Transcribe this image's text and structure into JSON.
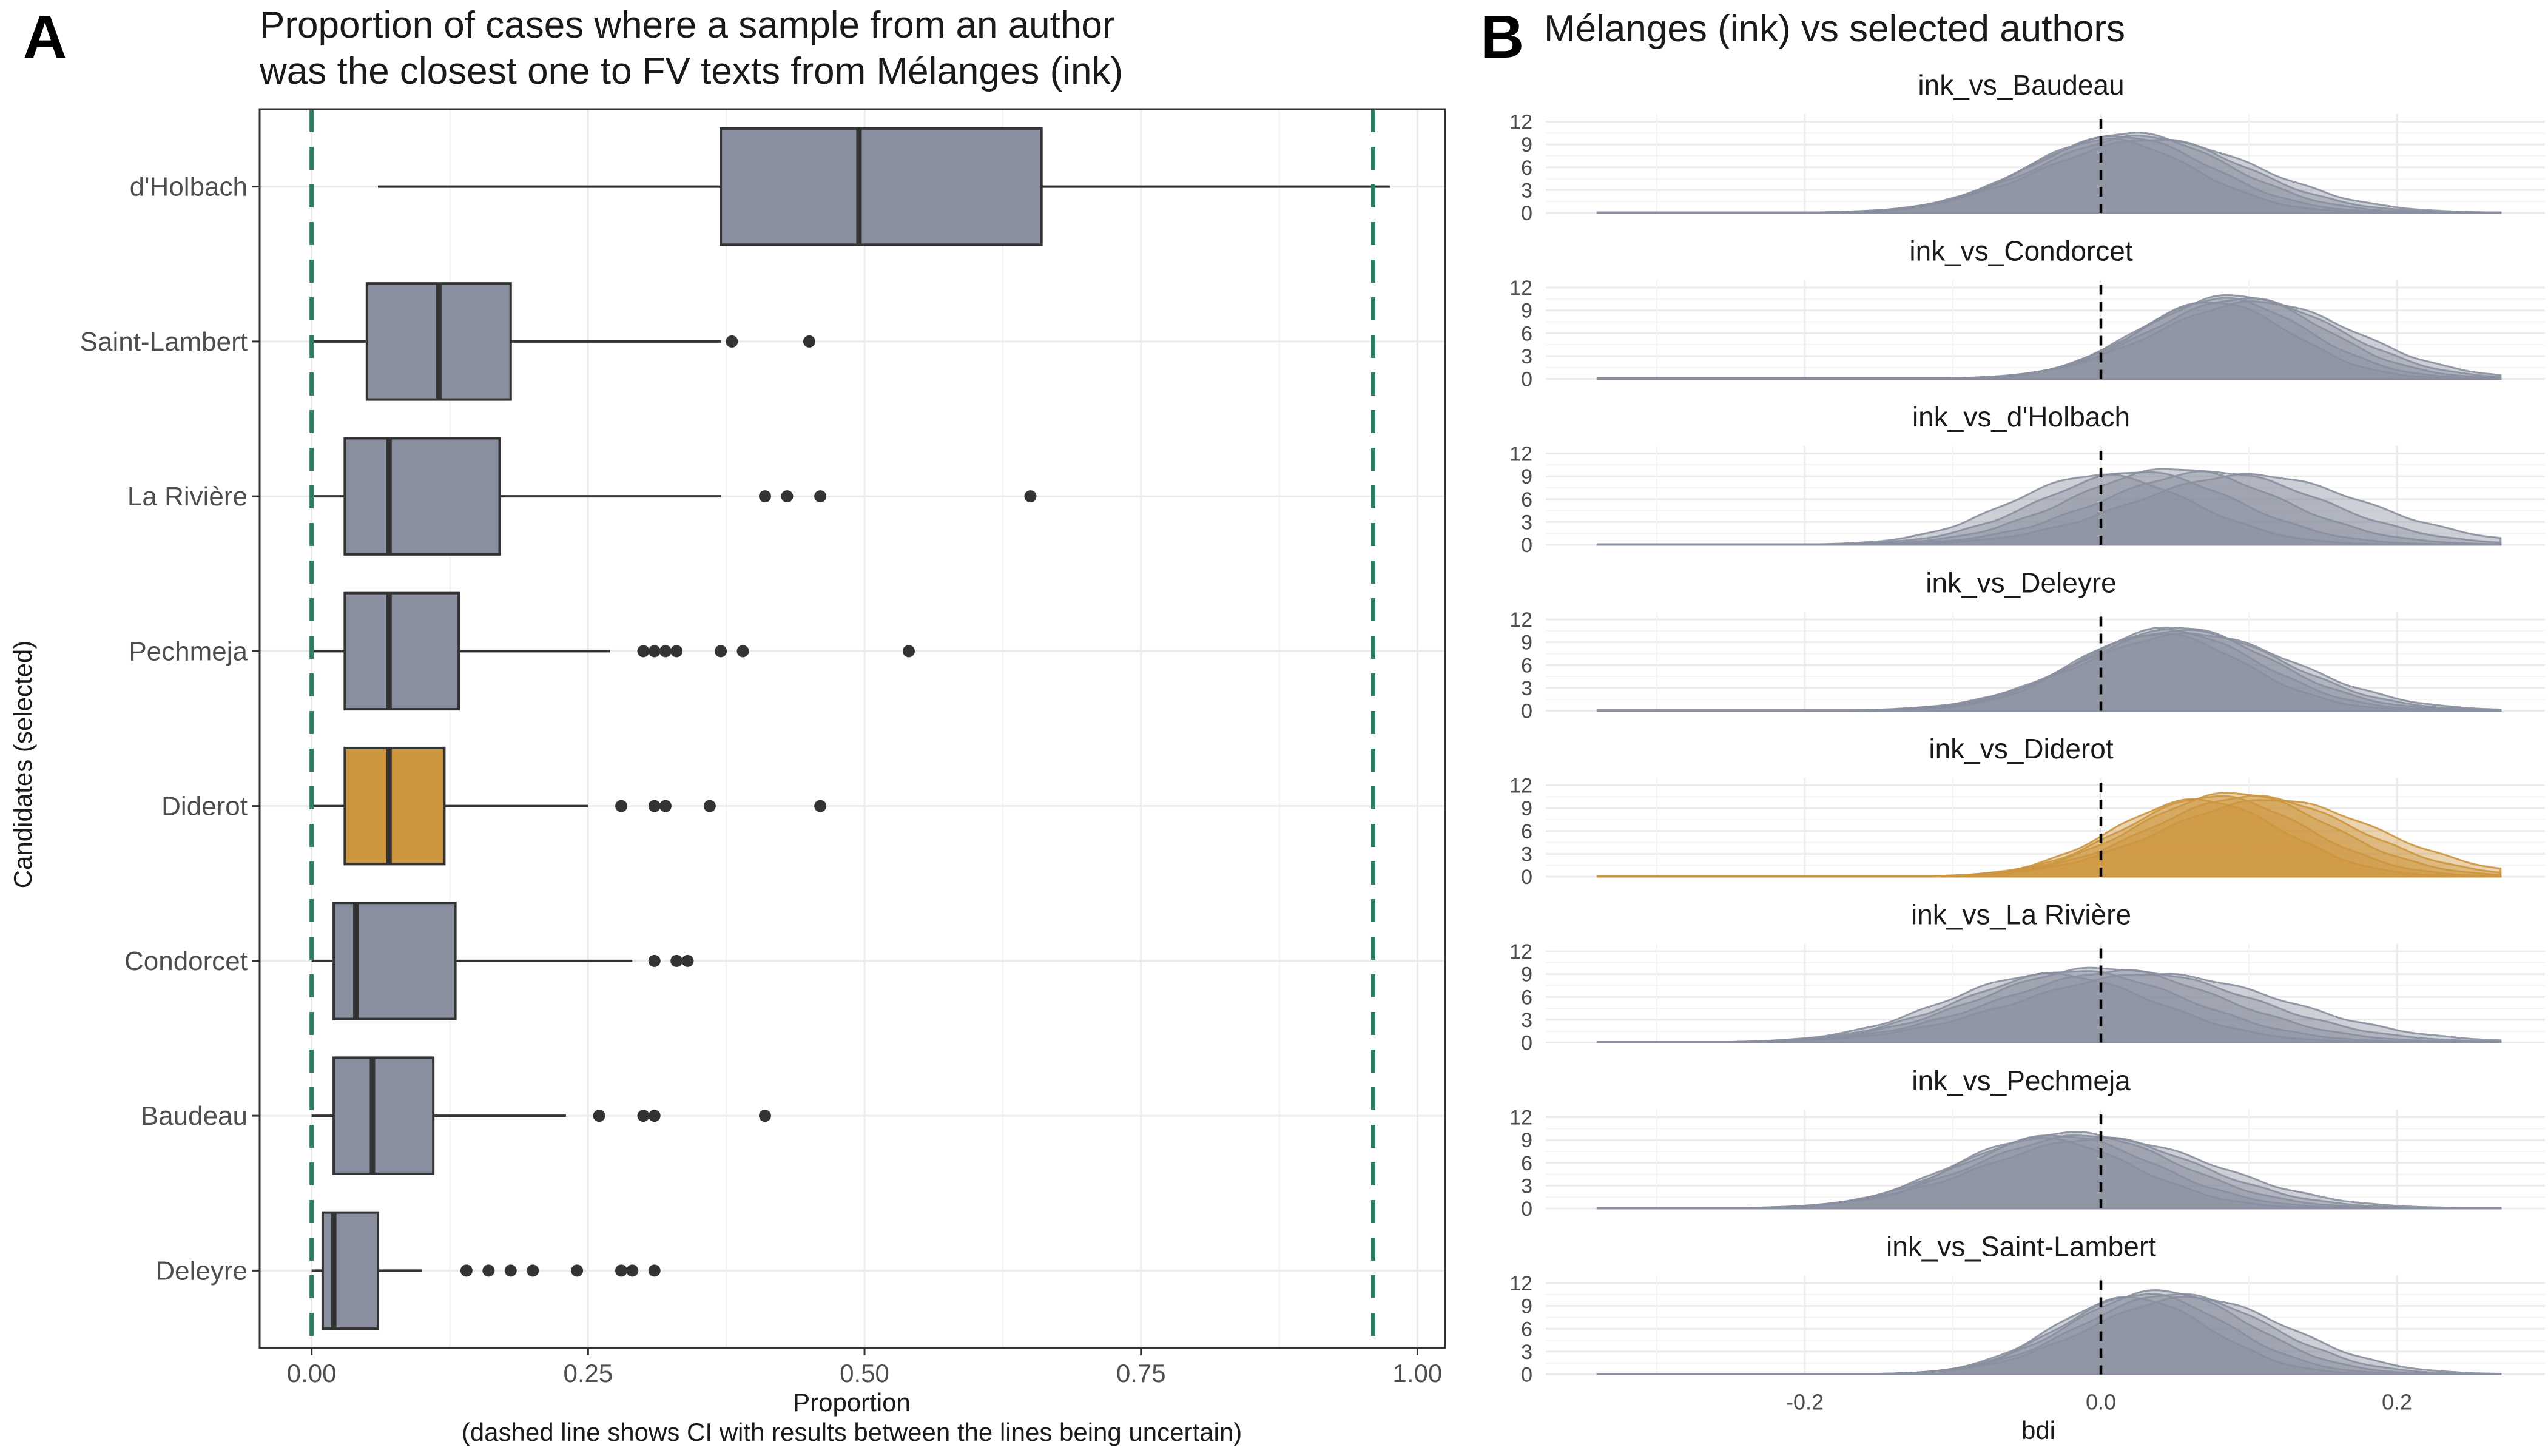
{
  "panel_a": {
    "letter": "A",
    "title_line1": "Proportion of cases where a sample from an author",
    "title_line2": "was the closest one to FV texts from Mélanges (ink)",
    "xlabel_line1": "Proportion",
    "xlabel_line2": "(dashed line shows CI with results between the lines being uncertain)",
    "ylabel": "Candidates (selected)"
  },
  "panel_b": {
    "letter": "B",
    "title": "Mélanges (ink) vs selected authors",
    "xlabel": "bdi"
  },
  "colors": {
    "box_fill": "#8a8f9f",
    "highlight_fill": "#cc963f",
    "ci_line": "#2e7d62",
    "density_fill": "#8a8f9f",
    "density_highlight": "#cc963f",
    "grid": "#ebebeb",
    "text": "#1a1a1a"
  },
  "chart_data": [
    {
      "type": "box",
      "orientation": "horizontal",
      "title": "Proportion of cases where a sample from an author was the closest one to FV texts from Mélanges (ink)",
      "xlabel": "Proportion",
      "ylabel": "Candidates (selected)",
      "xlim": [
        -0.047,
        1.025
      ],
      "xticks": [
        0.0,
        0.25,
        0.5,
        0.75,
        1.0
      ],
      "xtick_labels": [
        "0.00",
        "0.25",
        "0.50",
        "0.75",
        "1.00"
      ],
      "ci_lines": [
        0.0,
        0.96
      ],
      "highlight": "Diderot",
      "grid": true,
      "categories": [
        "d'Holbach",
        "Saint-Lambert",
        "La Rivière",
        "Pechmeja",
        "Diderot",
        "Condorcet",
        "Baudeau",
        "Deleyre"
      ],
      "boxes": [
        {
          "name": "d'Holbach",
          "whisker_low": 0.06,
          "q1": 0.37,
          "median": 0.495,
          "q3": 0.66,
          "whisker_high": 0.975,
          "outliers": []
        },
        {
          "name": "Saint-Lambert",
          "whisker_low": 0.0,
          "q1": 0.05,
          "median": 0.115,
          "q3": 0.18,
          "whisker_high": 0.37,
          "outliers": [
            0.38,
            0.45
          ]
        },
        {
          "name": "La Rivière",
          "whisker_low": 0.0,
          "q1": 0.03,
          "median": 0.07,
          "q3": 0.17,
          "whisker_high": 0.37,
          "outliers": [
            0.41,
            0.43,
            0.46,
            0.65
          ]
        },
        {
          "name": "Pechmeja",
          "whisker_low": 0.0,
          "q1": 0.03,
          "median": 0.07,
          "q3": 0.133,
          "whisker_high": 0.27,
          "outliers": [
            0.3,
            0.31,
            0.32,
            0.33,
            0.37,
            0.39,
            0.54
          ]
        },
        {
          "name": "Diderot",
          "whisker_low": 0.0,
          "q1": 0.03,
          "median": 0.07,
          "q3": 0.12,
          "whisker_high": 0.25,
          "outliers": [
            0.28,
            0.31,
            0.32,
            0.36,
            0.46
          ]
        },
        {
          "name": "Condorcet",
          "whisker_low": 0.0,
          "q1": 0.02,
          "median": 0.04,
          "q3": 0.13,
          "whisker_high": 0.29,
          "outliers": [
            0.31,
            0.33,
            0.34
          ]
        },
        {
          "name": "Baudeau",
          "whisker_low": 0.0,
          "q1": 0.02,
          "median": 0.055,
          "q3": 0.11,
          "whisker_high": 0.23,
          "outliers": [
            0.26,
            0.3,
            0.31,
            0.41
          ]
        },
        {
          "name": "Deleyre",
          "whisker_low": 0.0,
          "q1": 0.01,
          "median": 0.02,
          "q3": 0.06,
          "whisker_high": 0.1,
          "outliers": [
            0.14,
            0.16,
            0.18,
            0.2,
            0.24,
            0.28,
            0.29,
            0.31
          ]
        }
      ]
    },
    {
      "type": "area",
      "title": "Mélanges (ink) vs selected authors",
      "xlabel": "bdi",
      "xlim": [
        -0.375,
        0.3
      ],
      "xticks": [
        -0.2,
        0.0,
        0.2
      ],
      "xtick_labels": [
        "-0.2",
        "0.0",
        "0.2"
      ],
      "ylim": [
        0,
        13
      ],
      "yticks": [
        0,
        3,
        6,
        9,
        12
      ],
      "vline": 0.0,
      "highlight": "ink_vs_Diderot",
      "grid": true,
      "facets": [
        {
          "label": "ink_vs_Baudeau",
          "mean": 0.02,
          "sd": 0.065,
          "peak": 10.5,
          "spread": 0.015
        },
        {
          "label": "ink_vs_Condorcet",
          "mean": 0.09,
          "sd": 0.06,
          "peak": 11.0,
          "spread": 0.015
        },
        {
          "label": "ink_vs_d'Holbach",
          "mean": 0.05,
          "sd": 0.07,
          "peak": 10.0,
          "spread": 0.05
        },
        {
          "label": "ink_vs_Deleyre",
          "mean": 0.05,
          "sd": 0.065,
          "peak": 11.0,
          "spread": 0.01
        },
        {
          "label": "ink_vs_Diderot",
          "mean": 0.09,
          "sd": 0.065,
          "peak": 11.0,
          "spread": 0.025
        },
        {
          "label": "ink_vs_La Rivière",
          "mean": 0.0,
          "sd": 0.08,
          "peak": 9.8,
          "spread": 0.035
        },
        {
          "label": "ink_vs_Pechmeja",
          "mean": -0.02,
          "sd": 0.07,
          "peak": 10.0,
          "spread": 0.02
        },
        {
          "label": "ink_vs_Saint-Lambert",
          "mean": 0.04,
          "sd": 0.06,
          "peak": 11.0,
          "spread": 0.02
        }
      ]
    }
  ]
}
